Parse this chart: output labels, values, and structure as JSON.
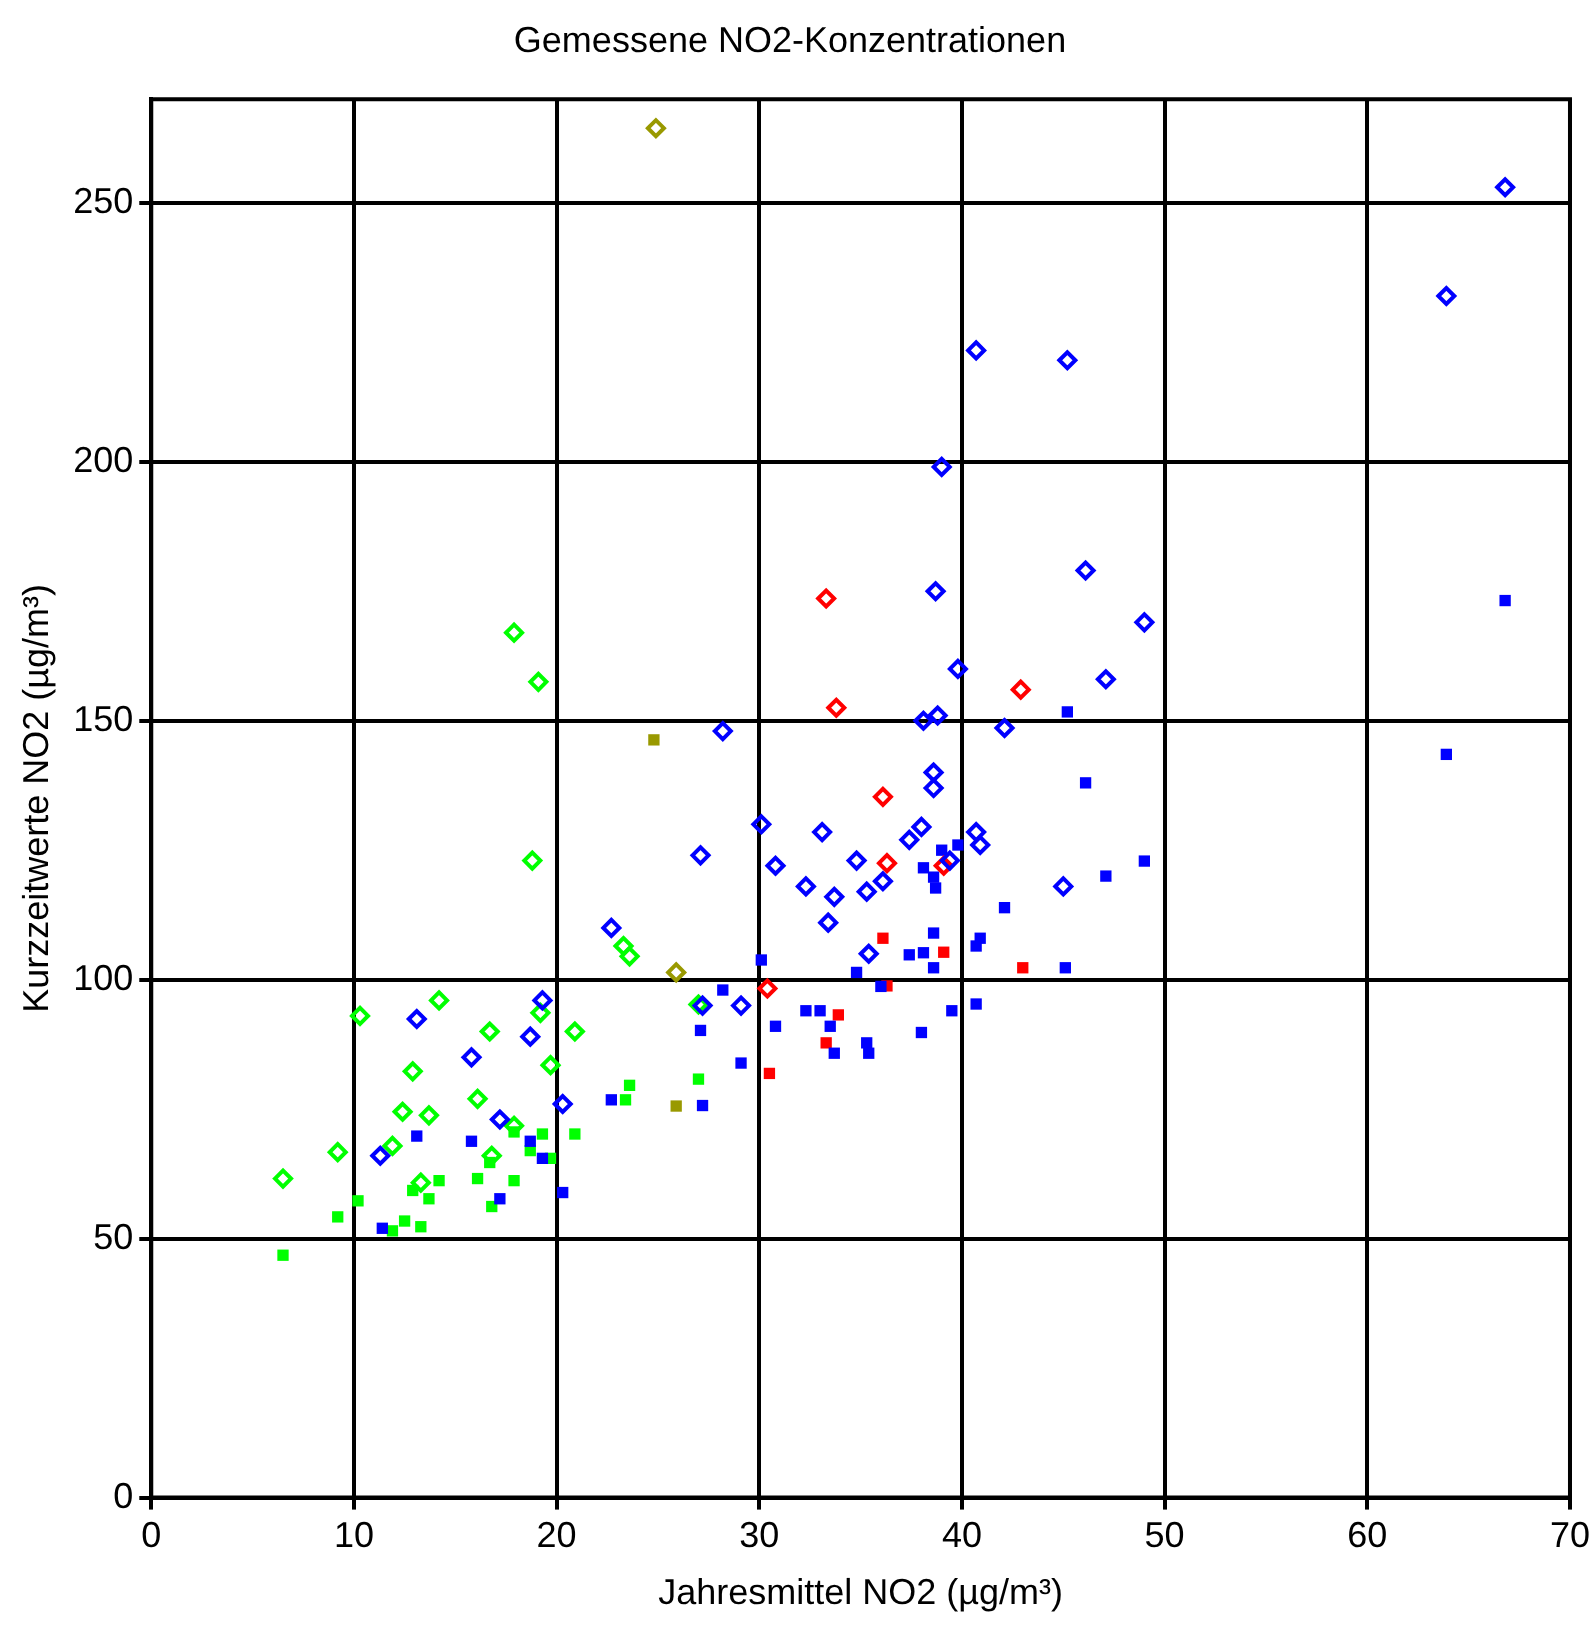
{
  "chart_data": {
    "type": "scatter",
    "title": "Gemessene NO2-Konzentrationen",
    "xlabel": "Jahresmittel NO2 (µg/m³)",
    "ylabel": "Kurzzeitwerte NO2 (µg/m³)",
    "xlim": [
      0,
      70
    ],
    "xticks": [
      0,
      10,
      20,
      30,
      40,
      50,
      60,
      70
    ],
    "ylim": [
      0,
      270
    ],
    "yticks": [
      0,
      50,
      100,
      150,
      200,
      250
    ],
    "grid": true,
    "legend": false,
    "series": [
      {
        "color": "#0000ff",
        "marker": "diamond",
        "x": [
          66.8,
          63.9,
          40.7,
          45.2,
          39.0,
          46.1,
          38.7,
          49.0,
          39.8,
          47.1,
          38.8,
          38.1,
          42.1,
          28.2,
          38.6,
          38.6,
          30.1,
          33.1,
          38.0,
          40.7,
          40.9,
          37.4,
          27.1,
          30.8,
          34.8,
          39.4,
          32.3,
          33.7,
          35.3,
          36.1,
          45.0,
          33.4,
          22.7,
          35.4,
          29.1,
          27.2,
          19.3,
          13.1,
          18.7,
          15.8,
          20.3,
          17.2,
          11.3
        ],
        "values": [
          253,
          232,
          221.5,
          219.6,
          199,
          179,
          175,
          169,
          160,
          158,
          151,
          150,
          148.6,
          148,
          140,
          137,
          130,
          128.5,
          129.5,
          128.5,
          126,
          127,
          124,
          122,
          123,
          123,
          118,
          116,
          117,
          119,
          118,
          111,
          110,
          105,
          95,
          95,
          96,
          92.4,
          89,
          85,
          76,
          73,
          66
        ]
      },
      {
        "color": "#00ff00",
        "marker": "diamond",
        "x": [
          17.9,
          19.1,
          18.8,
          23.3,
          23.6,
          10.3,
          14.2,
          19.2,
          16.7,
          20.9,
          12.9,
          19.7,
          16.1,
          12.4,
          13.7,
          9.2,
          11.9,
          6.5,
          27.0,
          17.9,
          13.3,
          16.8
        ],
        "values": [
          167,
          157.5,
          123,
          106.5,
          104.5,
          93,
          96,
          93.6,
          90,
          90,
          82.3,
          83.5,
          77,
          74.5,
          73.8,
          66.7,
          67.9,
          61.6,
          95.2,
          71.8,
          60.8,
          66
        ]
      },
      {
        "color": "#ff0000",
        "marker": "diamond",
        "x": [
          33.3,
          33.8,
          42.9,
          36.1,
          36.3,
          39.1,
          30.4
        ],
        "values": [
          173.6,
          152.5,
          156,
          135.3,
          122.5,
          122,
          98.3
        ]
      },
      {
        "color": "#999900",
        "marker": "diamond",
        "x": [
          24.9,
          25.9
        ],
        "values": [
          264.4,
          101.4
        ]
      },
      {
        "color": "#0000ff",
        "marker": "square",
        "x": [
          66.8,
          63.9,
          45.2,
          46.1,
          49.0,
          47.1,
          42.1,
          40.9,
          40.7,
          39.0,
          39.8,
          38.1,
          38.6,
          38.7,
          38.6,
          37.4,
          38.1,
          38.6,
          34.8,
          45.1,
          30.1,
          36.0,
          28.2,
          32.3,
          33.0,
          30.8,
          33.5,
          39.5,
          40.7,
          38.0,
          33.7,
          35.3,
          35.4,
          27.1,
          29.1,
          27.2,
          22.7,
          13.1,
          15.8,
          18.7,
          19.3,
          17.2,
          20.3,
          11.4
        ],
        "values": [
          173.2,
          143.5,
          151.7,
          138,
          122.9,
          120,
          113.9,
          108,
          106.5,
          125,
          126,
          121.6,
          119.8,
          117.7,
          109,
          104.8,
          105.2,
          102.3,
          101.4,
          102.3,
          103.8,
          98.7,
          98,
          94,
          94,
          91,
          91,
          94,
          95.3,
          89.8,
          85.8,
          87.8,
          85.8,
          90.2,
          83.9,
          75.7,
          76.8,
          69.8,
          68.8,
          68.8,
          65.5,
          57.7,
          58.9,
          52
        ]
      },
      {
        "color": "#00ff00",
        "marker": "square",
        "x": [
          23.6,
          23.4,
          27.0,
          20.9,
          19.3,
          17.9,
          19.7,
          18.7,
          16.7,
          14.2,
          16.1,
          17.9,
          12.9,
          13.7,
          10.2,
          9.2,
          16.8,
          12.5,
          13.3,
          11.9,
          6.5
        ],
        "values": [
          79.6,
          76.8,
          80.8,
          70.2,
          70.2,
          70.6,
          65.5,
          67,
          64.7,
          61.2,
          61.6,
          61.2,
          59.3,
          57.7,
          57.3,
          54.2,
          56.2,
          53.4,
          52.3,
          51.5,
          46.8
        ]
      },
      {
        "color": "#ff0000",
        "marker": "square",
        "x": [
          36.1,
          39.1,
          43.0,
          36.3,
          33.9,
          33.3,
          30.5
        ],
        "values": [
          108,
          105.3,
          102.3,
          98.8,
          93.2,
          87.8,
          81.9
        ]
      },
      {
        "color": "#999900",
        "marker": "square",
        "x": [
          24.8,
          25.9
        ],
        "values": [
          146.3,
          75.6
        ]
      }
    ]
  }
}
